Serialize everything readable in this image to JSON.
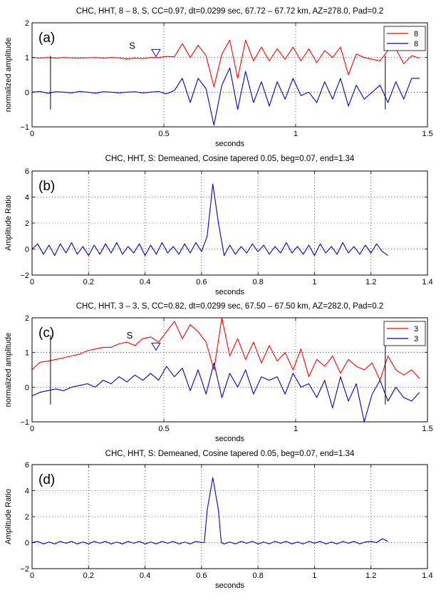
{
  "chart_data": [
    {
      "type": "line",
      "panel": "(a)",
      "title": "CHC, HHT, 8 – 8, S, CC=0.97, dt=0.0299 sec, 67.72 – 67.72 km, AZ=278.0, Pad=0.2",
      "xlabel": "seconds",
      "ylabel": "normalized amplitude",
      "xlim": [
        0,
        1.5
      ],
      "ylim": [
        -1,
        2
      ],
      "xticks": [
        0,
        0.5,
        1,
        1.5
      ],
      "xtick_labels": [
        "0",
        "0.5",
        "1",
        "1.5"
      ],
      "yticks": [
        -1,
        0,
        1,
        2
      ],
      "ytick_labels": [
        "−1",
        "0",
        "1",
        "2"
      ],
      "grid": true,
      "legend_position": "top-right",
      "markers": {
        "left": 0.07,
        "right": 1.34,
        "ybottom": -0.5,
        "ytop": 1.05
      },
      "annotation": {
        "text": "S",
        "x": 0.38,
        "y": 1.25
      },
      "triangle": {
        "x": 0.47,
        "y": 1.13,
        "color": "#0000ff"
      },
      "colors": {
        "red": "#ff0000",
        "blue": "#0000c8"
      },
      "series": [
        {
          "name": "8",
          "color": "#ff0000",
          "x": [
            0,
            0.03,
            0.06,
            0.09,
            0.12,
            0.15,
            0.18,
            0.21,
            0.24,
            0.27,
            0.3,
            0.33,
            0.36,
            0.39,
            0.42,
            0.45,
            0.48,
            0.51,
            0.54,
            0.57,
            0.6,
            0.63,
            0.66,
            0.69,
            0.72,
            0.75,
            0.78,
            0.81,
            0.84,
            0.87,
            0.9,
            0.93,
            0.96,
            0.99,
            1.02,
            1.05,
            1.08,
            1.11,
            1.14,
            1.17,
            1.2,
            1.23,
            1.26,
            1.29,
            1.32,
            1.35,
            1.38,
            1.41,
            1.44,
            1.47
          ],
          "y": [
            1.0,
            0.98,
            1.0,
            0.98,
            1.0,
            0.99,
            0.98,
            0.99,
            1.0,
            0.98,
            1.0,
            0.99,
            0.96,
            0.98,
            0.97,
            1.0,
            1.0,
            1.03,
            1.02,
            1.4,
            1.0,
            1.35,
            1.05,
            0.15,
            1.1,
            1.5,
            0.4,
            1.5,
            0.9,
            1.3,
            0.9,
            1.25,
            0.95,
            1.3,
            0.9,
            1.25,
            0.85,
            1.2,
            1.0,
            1.3,
            0.5,
            1.1,
            1.0,
            0.95,
            0.9,
            1.2,
            1.25,
            0.82,
            1.05,
            0.98
          ]
        },
        {
          "name": "8",
          "color": "#0000c8",
          "x": [
            0,
            0.03,
            0.06,
            0.09,
            0.12,
            0.15,
            0.18,
            0.21,
            0.24,
            0.27,
            0.3,
            0.33,
            0.36,
            0.39,
            0.42,
            0.45,
            0.48,
            0.51,
            0.54,
            0.57,
            0.6,
            0.63,
            0.66,
            0.69,
            0.72,
            0.75,
            0.78,
            0.81,
            0.84,
            0.87,
            0.9,
            0.93,
            0.96,
            0.99,
            1.02,
            1.05,
            1.08,
            1.11,
            1.14,
            1.17,
            1.2,
            1.23,
            1.26,
            1.29,
            1.32,
            1.35,
            1.38,
            1.41,
            1.44,
            1.47
          ],
          "y": [
            0.0,
            0.02,
            -0.03,
            0.01,
            0.0,
            -0.02,
            0.02,
            0.0,
            -0.03,
            0.01,
            0.0,
            -0.02,
            0.0,
            0.01,
            -0.02,
            0.0,
            0.02,
            -0.05,
            0.05,
            0.4,
            -0.3,
            0.4,
            0.1,
            -0.95,
            0.2,
            0.7,
            -0.5,
            0.6,
            -0.3,
            0.3,
            -0.4,
            0.3,
            -0.2,
            0.4,
            -0.1,
            0.0,
            -0.3,
            0.3,
            -0.2,
            0.4,
            -0.4,
            0.2,
            -0.2,
            0.0,
            0.2,
            -0.3,
            0.3,
            -0.2,
            0.4,
            0.4
          ]
        }
      ]
    },
    {
      "type": "line",
      "panel": "(b)",
      "title": "CHC, HHT, S: Demeaned, Cosine tapered 0.05, beg=0.07, end=1.34",
      "xlabel": "seconds",
      "ylabel": "Amplitude Ratio",
      "xlim": [
        0,
        1.4
      ],
      "ylim": [
        -2,
        6
      ],
      "xticks": [
        0,
        0.2,
        0.4,
        0.6,
        0.8,
        1,
        1.2,
        1.4
      ],
      "xtick_labels": [
        "0",
        "0.2",
        "0.4",
        "0.6",
        "0.8",
        "1",
        "1.2",
        "1.4"
      ],
      "yticks": [
        -2,
        0,
        2,
        4,
        6
      ],
      "ytick_labels": [
        "−2",
        "0",
        "2",
        "4",
        "6"
      ],
      "grid": true,
      "colors": {
        "line": "#0000c8"
      },
      "series": [
        {
          "color": "#0000c8",
          "x": [
            0,
            0.02,
            0.04,
            0.06,
            0.08,
            0.1,
            0.12,
            0.14,
            0.16,
            0.18,
            0.2,
            0.22,
            0.24,
            0.26,
            0.28,
            0.3,
            0.32,
            0.34,
            0.36,
            0.38,
            0.4,
            0.42,
            0.44,
            0.46,
            0.48,
            0.5,
            0.52,
            0.54,
            0.56,
            0.58,
            0.6,
            0.62,
            0.64,
            0.66,
            0.68,
            0.7,
            0.72,
            0.74,
            0.76,
            0.78,
            0.8,
            0.82,
            0.84,
            0.86,
            0.88,
            0.9,
            0.92,
            0.94,
            0.96,
            0.98,
            1.0,
            1.02,
            1.04,
            1.06,
            1.08,
            1.1,
            1.12,
            1.14,
            1.16,
            1.18,
            1.2,
            1.22,
            1.24,
            1.26
          ],
          "y": [
            0.0,
            0.4,
            -0.4,
            0.3,
            -0.5,
            0.4,
            -0.3,
            0.5,
            -0.4,
            0.2,
            -0.5,
            0.3,
            -0.4,
            0.4,
            -0.3,
            0.5,
            -0.4,
            0.2,
            -0.3,
            0.4,
            -0.5,
            0.3,
            -0.4,
            0.5,
            -0.3,
            0.2,
            -0.4,
            0.4,
            -0.3,
            0.5,
            -0.2,
            1.0,
            5.0,
            2.0,
            -0.5,
            0.3,
            -0.4,
            0.2,
            -0.3,
            0.4,
            -0.2,
            0.3,
            -0.4,
            0.2,
            -0.3,
            0.5,
            -0.3,
            0.2,
            -0.4,
            0.3,
            -0.5,
            0.4,
            -0.3,
            0.2,
            -0.4,
            0.5,
            -0.3,
            0.2,
            -0.4,
            0.3,
            -0.3,
            0.4,
            -0.2,
            -0.5
          ]
        }
      ]
    },
    {
      "type": "line",
      "panel": "(c)",
      "title": "CHC, HHT, 3 – 3, S, CC=0.82,  dt=0.0299 sec, 67.50 – 67.50 km, AZ=282.0, Pad=0.2",
      "xlabel": "seconds",
      "ylabel": "normalized amplitude",
      "xlim": [
        0,
        1.5
      ],
      "ylim": [
        -1,
        2
      ],
      "xticks": [
        0,
        0.5,
        1,
        1.5
      ],
      "xtick_labels": [
        "0",
        "0.5",
        "1",
        "1.5"
      ],
      "yticks": [
        -1,
        0,
        1,
        2
      ],
      "ytick_labels": [
        "−1",
        "0",
        "1",
        "2"
      ],
      "grid": true,
      "legend_position": "top-right",
      "markers": {
        "left": 0.07,
        "right": 1.34,
        "ybottom": -0.5,
        "ytop": 1.5
      },
      "annotation": {
        "text": "S",
        "x": 0.37,
        "y": 1.4
      },
      "triangle": {
        "x": 0.47,
        "y": 1.17,
        "color": "#0000ff"
      },
      "colors": {
        "red": "#ff0000",
        "blue": "#0000c8"
      },
      "series": [
        {
          "name": "3",
          "color": "#ff0000",
          "x": [
            0,
            0.03,
            0.06,
            0.09,
            0.12,
            0.15,
            0.18,
            0.21,
            0.24,
            0.27,
            0.3,
            0.33,
            0.36,
            0.39,
            0.42,
            0.45,
            0.48,
            0.51,
            0.54,
            0.57,
            0.6,
            0.63,
            0.66,
            0.69,
            0.72,
            0.75,
            0.78,
            0.81,
            0.84,
            0.87,
            0.9,
            0.93,
            0.96,
            0.99,
            1.02,
            1.05,
            1.08,
            1.11,
            1.14,
            1.17,
            1.2,
            1.23,
            1.26,
            1.29,
            1.32,
            1.35,
            1.38,
            1.41,
            1.44,
            1.47
          ],
          "y": [
            0.5,
            0.72,
            0.75,
            0.8,
            0.85,
            0.9,
            0.95,
            1.05,
            1.1,
            1.15,
            1.15,
            1.25,
            1.3,
            1.2,
            1.4,
            1.45,
            1.3,
            1.6,
            1.9,
            1.4,
            1.8,
            1.6,
            1.3,
            0.5,
            2.0,
            0.9,
            1.4,
            0.8,
            1.3,
            0.7,
            1.2,
            0.75,
            1.0,
            0.5,
            1.1,
            0.3,
            0.8,
            0.6,
            0.9,
            0.4,
            0.8,
            0.6,
            0.5,
            0.7,
            0.2,
            0.9,
            0.5,
            0.35,
            0.5,
            0.25
          ]
        },
        {
          "name": "3",
          "color": "#0000c8",
          "x": [
            0,
            0.03,
            0.06,
            0.09,
            0.12,
            0.15,
            0.18,
            0.21,
            0.24,
            0.27,
            0.3,
            0.33,
            0.36,
            0.39,
            0.42,
            0.45,
            0.48,
            0.51,
            0.54,
            0.57,
            0.6,
            0.63,
            0.66,
            0.69,
            0.72,
            0.75,
            0.78,
            0.81,
            0.84,
            0.87,
            0.9,
            0.93,
            0.96,
            0.99,
            1.02,
            1.05,
            1.08,
            1.11,
            1.14,
            1.17,
            1.2,
            1.23,
            1.26,
            1.29,
            1.32,
            1.35,
            1.38,
            1.41,
            1.44,
            1.47
          ],
          "y": [
            -0.25,
            -0.15,
            -0.1,
            -0.05,
            -0.1,
            0.0,
            0.05,
            0.1,
            0.0,
            0.2,
            0.1,
            0.3,
            0.15,
            0.35,
            0.2,
            0.4,
            0.2,
            0.6,
            0.3,
            0.55,
            -0.1,
            0.5,
            -0.2,
            0.7,
            -0.3,
            0.4,
            0.0,
            0.5,
            -0.2,
            0.3,
            0.2,
            0.3,
            -0.2,
            0.4,
            0.0,
            0.1,
            -0.3,
            0.2,
            -0.6,
            0.3,
            -0.4,
            0.1,
            -1.0,
            -0.2,
            0.2,
            -0.4,
            0.0,
            -0.3,
            -0.4,
            -0.15
          ]
        }
      ]
    },
    {
      "type": "line",
      "panel": "(d)",
      "title": "CHC, HHT, S: Demeaned, Cosine tapered 0.05, beg=0.07, end=1.34",
      "xlabel": "seconds",
      "ylabel": "Amplitude Ratio",
      "xlim": [
        0,
        1.4
      ],
      "ylim": [
        -2,
        6
      ],
      "xticks": [
        0,
        0.2,
        0.4,
        0.6,
        0.8,
        1,
        1.2,
        1.4
      ],
      "xtick_labels": [
        "0",
        "0.2",
        "0.4",
        "0.6",
        "0.8",
        "1",
        "1.2",
        "1.4"
      ],
      "yticks": [
        -2,
        0,
        2,
        4,
        6
      ],
      "ytick_labels": [
        "−2",
        "0",
        "2",
        "4",
        "6"
      ],
      "grid": true,
      "colors": {
        "line": "#0000c8"
      },
      "series": [
        {
          "color": "#0000c8",
          "x": [
            0,
            0.02,
            0.04,
            0.06,
            0.08,
            0.1,
            0.12,
            0.14,
            0.16,
            0.18,
            0.2,
            0.22,
            0.24,
            0.26,
            0.28,
            0.3,
            0.32,
            0.34,
            0.36,
            0.38,
            0.4,
            0.42,
            0.44,
            0.46,
            0.48,
            0.5,
            0.52,
            0.54,
            0.56,
            0.58,
            0.6,
            0.61,
            0.62,
            0.64,
            0.66,
            0.67,
            0.68,
            0.7,
            0.72,
            0.74,
            0.76,
            0.78,
            0.8,
            0.82,
            0.84,
            0.86,
            0.88,
            0.9,
            0.92,
            0.94,
            0.96,
            0.98,
            1.0,
            1.02,
            1.04,
            1.06,
            1.08,
            1.1,
            1.12,
            1.14,
            1.16,
            1.18,
            1.2,
            1.22,
            1.24,
            1.26
          ],
          "y": [
            0.0,
            0.1,
            -0.1,
            0.05,
            -0.1,
            0.1,
            -0.05,
            0.1,
            -0.1,
            0.05,
            -0.1,
            0.1,
            -0.05,
            0.1,
            -0.1,
            0.05,
            -0.1,
            0.1,
            -0.05,
            0.1,
            -0.1,
            0.05,
            -0.1,
            0.1,
            -0.05,
            0.1,
            -0.1,
            0.05,
            -0.1,
            0.1,
            0.0,
            0.0,
            2.5,
            5.0,
            2.5,
            0.0,
            -0.1,
            0.05,
            -0.1,
            0.1,
            -0.05,
            0.1,
            -0.1,
            0.05,
            -0.1,
            0.1,
            -0.05,
            0.1,
            -0.1,
            0.05,
            -0.1,
            0.1,
            -0.05,
            0.1,
            -0.1,
            0.05,
            -0.1,
            0.1,
            -0.05,
            0.1,
            -0.1,
            0.05,
            0.1,
            0.0,
            0.3,
            0.1
          ]
        }
      ]
    }
  ]
}
